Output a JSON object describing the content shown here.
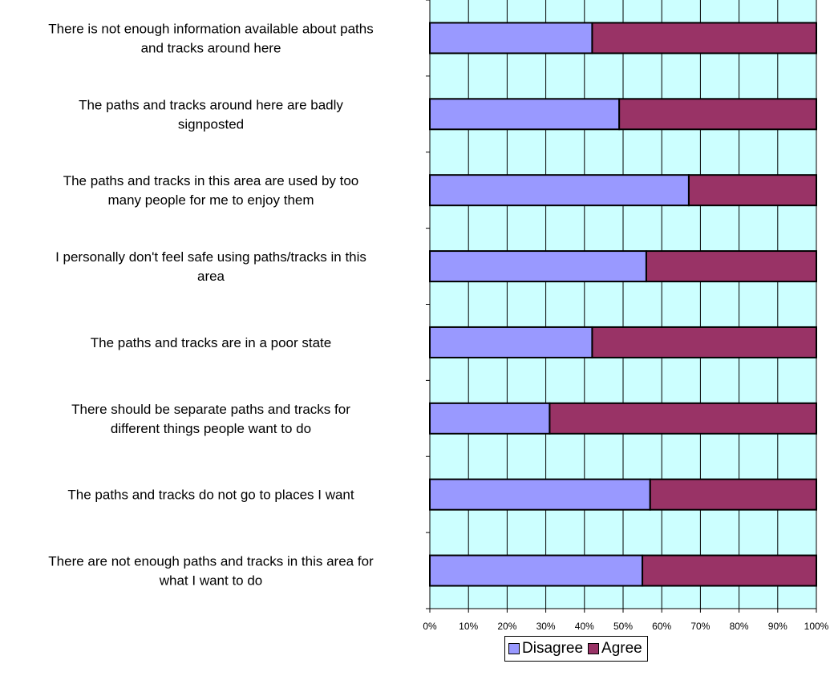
{
  "chart_data": {
    "type": "bar",
    "orientation": "horizontal",
    "stacked": "percent",
    "categories": [
      [
        "There is not enough information available about paths",
        "and tracks around here"
      ],
      [
        "The paths and tracks around here are badly",
        "signposted"
      ],
      [
        "The paths and tracks in this area are used by too",
        "many people for me to enjoy them"
      ],
      [
        "I personally don't feel safe using paths/tracks in this",
        "area"
      ],
      [
        "The paths and tracks are in a poor state"
      ],
      [
        "There should be separate paths and tracks for",
        "different things people want to do"
      ],
      [
        "The paths and tracks do not go to places I want"
      ],
      [
        "There are not enough paths and tracks in this area for",
        "what I want to do"
      ]
    ],
    "series": [
      {
        "name": "Disagree",
        "color": "#9999ff",
        "values": [
          42,
          49,
          67,
          56,
          42,
          31,
          57,
          55
        ]
      },
      {
        "name": "Agree",
        "color": "#993366",
        "values": [
          58,
          51,
          33,
          44,
          58,
          69,
          43,
          45
        ]
      }
    ],
    "xticks": [
      "0%",
      "10%",
      "20%",
      "30%",
      "40%",
      "50%",
      "60%",
      "70%",
      "80%",
      "90%",
      "100%"
    ],
    "xlim": [
      0,
      100
    ],
    "plot_background": "#ccffff",
    "grid": true,
    "legend_position": "bottom",
    "title": "",
    "xlabel": "",
    "ylabel": ""
  }
}
